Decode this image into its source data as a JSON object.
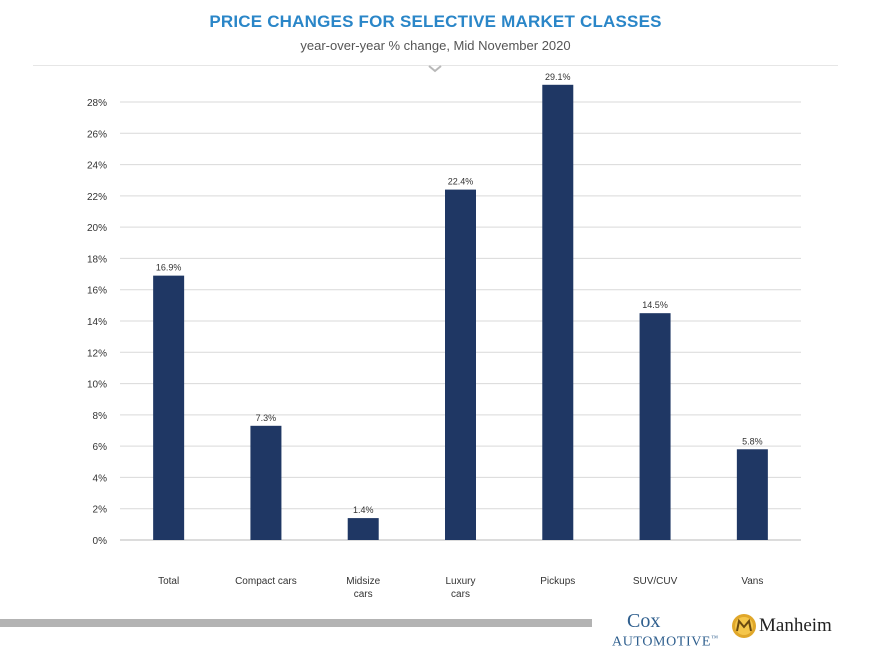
{
  "chart_data": {
    "type": "bar",
    "title": "PRICE CHANGES FOR SELECTIVE MARKET CLASSES",
    "subtitle": "year-over-year % change, Mid November 2020",
    "categories": [
      "Total",
      "Compact cars",
      "Midsize cars",
      "Luxury cars",
      "Pickups",
      "SUV/CUV",
      "Vans"
    ],
    "category_lines": [
      [
        "Total"
      ],
      [
        "Compact cars"
      ],
      [
        "Midsize",
        "cars"
      ],
      [
        "Luxury",
        "cars"
      ],
      [
        "Pickups"
      ],
      [
        "SUV/CUV"
      ],
      [
        "Vans"
      ]
    ],
    "values": [
      16.9,
      7.3,
      1.4,
      22.4,
      29.1,
      14.5,
      5.8
    ],
    "value_labels": [
      "16.9%",
      "7.3%",
      "1.4%",
      "22.4%",
      "29.1%",
      "14.5%",
      "5.8%"
    ],
    "ylim": [
      0,
      28
    ],
    "yticks": [
      0,
      2,
      4,
      6,
      8,
      10,
      12,
      14,
      16,
      18,
      20,
      22,
      24,
      26,
      28
    ],
    "ytick_labels": [
      "0%",
      "2%",
      "4%",
      "6%",
      "8%",
      "10%",
      "12%",
      "14%",
      "16%",
      "18%",
      "20%",
      "22%",
      "24%",
      "26%",
      "28%"
    ],
    "grid": true,
    "bar_color": "#1f3764"
  },
  "branding": {
    "cox_word": "Cox",
    "cox_sub": "AUTOMOTIVE",
    "cox_tm": "™",
    "manheim": "Manheim"
  }
}
